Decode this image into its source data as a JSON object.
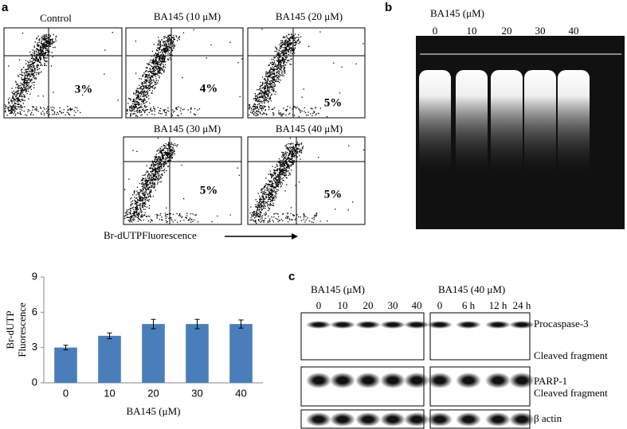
{
  "panels": {
    "a": {
      "label": "a",
      "plots": [
        {
          "title": "Control",
          "percent": "3%"
        },
        {
          "title": "BA145 (10 μM)",
          "percent": "4%"
        },
        {
          "title": "BA145 (20 μM)",
          "percent": "5%"
        },
        {
          "title": "BA145 (30 μM)",
          "percent": "5%"
        },
        {
          "title": "BA145 (40 μM)",
          "percent": "5%"
        }
      ],
      "axis_label": "Br-dUTPFluorescence"
    },
    "b": {
      "label": "b",
      "treatment": "BA145 (μM)",
      "lanes": [
        "0",
        "10",
        "20",
        "30",
        "40"
      ]
    },
    "c": {
      "label": "c",
      "left": {
        "treatment": "BA145 (μM)",
        "lanes": [
          "0",
          "10",
          "20",
          "30",
          "40"
        ]
      },
      "right": {
        "treatment": "BA145 (40 μM)",
        "lanes": [
          "0",
          "6 h",
          "12 h",
          "24 h"
        ]
      },
      "bands": [
        "Procaspase-3",
        "Cleaved fragment",
        "PARP-1",
        "Cleaved fragment",
        "β actin"
      ]
    }
  },
  "chart_data": {
    "type": "bar",
    "categories": [
      "0",
      "10",
      "20",
      "30",
      "40"
    ],
    "values": [
      3,
      4,
      5,
      5,
      5
    ],
    "errors": [
      0.2,
      0.25,
      0.4,
      0.4,
      0.35
    ],
    "ylabel": [
      "Br-dUTP",
      "Fluorescence"
    ],
    "xlabel": "BA145 (μM)",
    "ylim": [
      0,
      9
    ],
    "yticks": [
      0,
      3,
      6,
      9
    ],
    "color": "#4a7ebb"
  }
}
